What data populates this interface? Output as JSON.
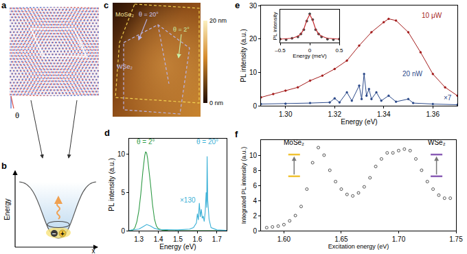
{
  "panels": {
    "a": {
      "letter": "a",
      "angle_label": "θ"
    },
    "b": {
      "letter": "b",
      "axis_labels": {
        "y": "Energy",
        "x": "x"
      },
      "charges": [
        "−",
        "+"
      ]
    },
    "c": {
      "letter": "c",
      "region_labels": [
        "MoSe₂",
        "WSe₂"
      ],
      "angle_labels": [
        "θ = 20°",
        "θ = 2°"
      ],
      "colorbar": {
        "range": [
          0,
          20
        ],
        "ticks": [
          {
            "value": 20,
            "label": "20 nm"
          },
          {
            "value": 0,
            "label": "0 nm"
          }
        ]
      }
    }
  },
  "chart_data": [
    {
      "panel": "d",
      "type": "line",
      "x_label": "Energy (eV)",
      "y_label": "PL intensity (a.u.)",
      "xlim": [
        1.25,
        1.75
      ],
      "xticks": [
        1.3,
        1.4,
        1.5,
        1.6,
        1.7
      ],
      "ylim": [
        0,
        12
      ],
      "yticks": [
        0,
        5,
        10
      ],
      "annotations": [
        "×130"
      ],
      "series": [
        {
          "name": "θ = 2°",
          "color": "#2e9a45",
          "x": [
            1.25,
            1.27,
            1.28,
            1.29,
            1.3,
            1.31,
            1.32,
            1.325,
            1.33,
            1.335,
            1.34,
            1.345,
            1.35,
            1.36,
            1.37,
            1.38,
            1.39,
            1.4,
            1.42,
            1.45,
            1.5,
            1.6,
            1.7,
            1.75
          ],
          "values": [
            0,
            0.1,
            0.4,
            1.2,
            2.6,
            4.8,
            7.6,
            9.0,
            9.8,
            10.3,
            10.1,
            9.4,
            8.4,
            6.0,
            3.4,
            1.5,
            0.6,
            0.25,
            0.08,
            0.02,
            0,
            0,
            0,
            0
          ]
        },
        {
          "name": "θ = 20°",
          "color": "#3ab0d6",
          "x": [
            1.25,
            1.3,
            1.32,
            1.34,
            1.36,
            1.38,
            1.4,
            1.5,
            1.56,
            1.58,
            1.595,
            1.6,
            1.605,
            1.61,
            1.615,
            1.62,
            1.625,
            1.63,
            1.635,
            1.64,
            1.645,
            1.648,
            1.65,
            1.653,
            1.66,
            1.67,
            1.7,
            1.75
          ],
          "values": [
            0.05,
            0.2,
            0.5,
            0.8,
            0.6,
            0.3,
            0.15,
            0.1,
            0.2,
            0.4,
            1.0,
            2.2,
            1.4,
            3.6,
            1.8,
            2.8,
            1.6,
            1.9,
            1.2,
            2.4,
            5.0,
            3.0,
            9.7,
            4.0,
            1.5,
            0.4,
            0.1,
            0.05
          ]
        }
      ]
    },
    {
      "panel": "e",
      "type": "line",
      "x_label": "Energy (eV)",
      "y_label": "PL intensity (a.u.)",
      "xlim": [
        1.29,
        1.37
      ],
      "xticks": [
        {
          "value": 1.3,
          "label": "1.30"
        },
        {
          "value": 1.32,
          "label": "1.32"
        },
        {
          "value": 1.34,
          "label": "1.34"
        },
        {
          "value": 1.36,
          "label": "1.36"
        }
      ],
      "ylim": [
        0,
        30
      ],
      "yticks": [
        0,
        10,
        20,
        30
      ],
      "annotations": [
        "×7"
      ],
      "series": [
        {
          "name": "10 μW",
          "color": "#a51d1d",
          "marker": "circle",
          "x": [
            1.29,
            1.295,
            1.3,
            1.305,
            1.31,
            1.315,
            1.32,
            1.325,
            1.33,
            1.335,
            1.34,
            1.342,
            1.345,
            1.35,
            1.355,
            1.36,
            1.365,
            1.37
          ],
          "values": [
            2.5,
            3.5,
            4.5,
            5.5,
            7.5,
            9.0,
            11.0,
            13.5,
            18.0,
            22.0,
            25.0,
            26.0,
            25.5,
            22.0,
            16.0,
            9.5,
            5.5,
            3.0
          ]
        },
        {
          "name": "20 nW",
          "color": "#2c4a8a",
          "marker": "circle",
          "x": [
            1.29,
            1.3,
            1.31,
            1.318,
            1.32,
            1.322,
            1.325,
            1.327,
            1.33,
            1.331,
            1.332,
            1.333,
            1.334,
            1.335,
            1.337,
            1.339,
            1.342,
            1.345,
            1.35,
            1.352,
            1.36,
            1.37
          ],
          "values": [
            0.5,
            0.6,
            0.8,
            1.0,
            2.2,
            1.0,
            4.0,
            1.5,
            6.0,
            2.0,
            9.5,
            3.0,
            5.0,
            2.0,
            4.0,
            1.5,
            3.0,
            1.2,
            2.0,
            0.8,
            0.5,
            0.3
          ]
        }
      ]
    },
    {
      "type": "line",
      "x_label": "Energy (meV)",
      "y_label": "PL intensity",
      "xlim": [
        -0.5,
        0.5
      ],
      "xticks": [
        {
          "value": -0.5,
          "label": "–0.5"
        },
        0,
        0.5
      ],
      "ylim": [
        0,
        1.15
      ],
      "tick_labels": "x",
      "series": [
        {
          "type": "scatter",
          "marker": "circle",
          "color": "#444444",
          "x": [
            -0.5,
            -0.4,
            -0.3,
            -0.2,
            -0.15,
            -0.1,
            -0.05,
            0,
            0.05,
            0.1,
            0.15,
            0.2,
            0.3,
            0.4,
            0.5
          ],
          "values": [
            0.12,
            0.1,
            0.15,
            0.2,
            0.3,
            0.45,
            0.75,
            1.0,
            0.8,
            0.45,
            0.3,
            0.2,
            0.12,
            0.1,
            0.12
          ]
        },
        {
          "type": "line",
          "color": "#c0282d",
          "x": [
            -0.5,
            -0.3,
            -0.2,
            -0.15,
            -0.1,
            -0.05,
            0,
            0.05,
            0.1,
            0.15,
            0.2,
            0.3,
            0.5
          ],
          "values": [
            0.12,
            0.15,
            0.22,
            0.3,
            0.47,
            0.78,
            0.98,
            0.78,
            0.47,
            0.3,
            0.22,
            0.15,
            0.12
          ]
        }
      ]
    },
    {
      "panel": "f",
      "type": "scatter",
      "x_label": "Excitation energy (eV)",
      "y_label": "Integrated PL intensity (a.u.)",
      "xlim": [
        1.58,
        1.75
      ],
      "xticks": [
        {
          "value": 1.6,
          "label": "1.60"
        },
        {
          "value": 1.65,
          "label": "1.65"
        },
        {
          "value": 1.7,
          "label": "1.70"
        },
        {
          "value": 1.75,
          "label": "1.75"
        }
      ],
      "ylim": [
        0,
        12
      ],
      "yticks": [
        0,
        2,
        4,
        6,
        8,
        10
      ],
      "annotations": [
        "MoSe₂",
        "WSe₂"
      ],
      "series": [
        {
          "marker": "open circle",
          "color": "#555555",
          "x": [
            1.585,
            1.59,
            1.595,
            1.6,
            1.605,
            1.61,
            1.615,
            1.62,
            1.625,
            1.63,
            1.635,
            1.64,
            1.645,
            1.65,
            1.655,
            1.66,
            1.665,
            1.67,
            1.675,
            1.68,
            1.685,
            1.69,
            1.695,
            1.7,
            1.705,
            1.71,
            1.715,
            1.72,
            1.725,
            1.73,
            1.735,
            1.74,
            1.745
          ],
          "values": [
            0.4,
            0.5,
            0.6,
            0.8,
            1.3,
            2.0,
            3.2,
            5.5,
            9.0,
            11.0,
            10.0,
            8.0,
            6.5,
            5.5,
            4.8,
            4.6,
            5.0,
            5.8,
            7.0,
            8.5,
            9.5,
            10.3,
            10.3,
            10.6,
            10.8,
            10.6,
            9.5,
            8.0,
            6.5,
            5.5,
            4.7,
            4.3,
            4.3
          ]
        }
      ]
    }
  ]
}
